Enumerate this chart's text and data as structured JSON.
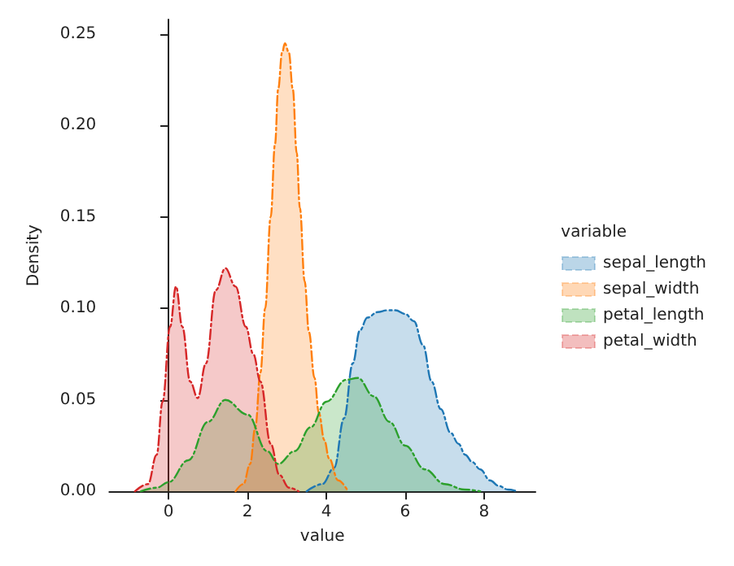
{
  "chart_data": {
    "type": "area",
    "xlabel": "value",
    "ylabel": "Density",
    "legend_title": "variable",
    "legend": "right",
    "line_style": "dashed",
    "marker": "none",
    "xlim": [
      -1.5,
      9.3
    ],
    "ylim": [
      0,
      0.258
    ],
    "xticks": [
      0,
      2,
      4,
      6,
      8
    ],
    "yticks": [
      {
        "value": 0,
        "label": "0.00"
      },
      0.05,
      {
        "value": 0.1,
        "label": "0.10"
      },
      0.15,
      {
        "value": 0.2,
        "label": "0.20"
      },
      0.25
    ],
    "series": [
      {
        "name": "sepal_length",
        "color": "#1f77b4",
        "x": [
          3.5,
          3.9,
          4.2,
          4.45,
          4.67,
          4.85,
          5.04,
          5.3,
          5.55,
          5.75,
          6.0,
          6.22,
          6.45,
          6.67,
          6.9,
          7.15,
          7.35,
          7.52,
          7.7,
          7.9,
          8.15,
          8.37,
          8.6,
          8.85
        ],
        "values": [
          0,
          0.004,
          0.013,
          0.04,
          0.07,
          0.088,
          0.095,
          0.098,
          0.099,
          0.099,
          0.097,
          0.093,
          0.08,
          0.06,
          0.045,
          0.032,
          0.026,
          0.02,
          0.016,
          0.012,
          0.006,
          0.003,
          0.001,
          0
        ]
      },
      {
        "name": "sepal_width",
        "color": "#ff7f0e",
        "x": [
          1.7,
          1.9,
          2.07,
          2.2,
          2.33,
          2.45,
          2.59,
          2.7,
          2.78,
          2.88,
          2.95,
          3.05,
          3.15,
          3.25,
          3.33,
          3.45,
          3.56,
          3.7,
          3.81,
          3.95,
          4.07,
          4.3,
          4.55
        ],
        "values": [
          0,
          0.004,
          0.015,
          0.035,
          0.065,
          0.1,
          0.15,
          0.19,
          0.22,
          0.24,
          0.245,
          0.24,
          0.22,
          0.185,
          0.155,
          0.115,
          0.087,
          0.062,
          0.043,
          0.028,
          0.018,
          0.006,
          0
        ]
      },
      {
        "name": "petal_length",
        "color": "#2ca02c",
        "x": [
          -0.7,
          -0.3,
          0,
          0.5,
          1.0,
          1.44,
          2.0,
          2.5,
          2.78,
          3.2,
          3.6,
          4.0,
          4.5,
          4.8,
          5.2,
          5.6,
          6.0,
          6.5,
          7.0,
          7.5,
          7.9
        ],
        "values": [
          0,
          0.002,
          0.005,
          0.017,
          0.038,
          0.05,
          0.042,
          0.022,
          0.015,
          0.022,
          0.035,
          0.049,
          0.061,
          0.062,
          0.052,
          0.038,
          0.025,
          0.012,
          0.004,
          0.001,
          0
        ]
      },
      {
        "name": "petal_width",
        "color": "#d62728",
        "x": [
          -0.85,
          -0.52,
          -0.3,
          -0.15,
          0.04,
          0.19,
          0.35,
          0.55,
          0.74,
          0.95,
          1.2,
          1.44,
          1.7,
          1.96,
          2.15,
          2.33,
          2.59,
          2.81,
          3.05,
          3.3
        ],
        "values": [
          0,
          0.004,
          0.02,
          0.049,
          0.09,
          0.112,
          0.09,
          0.06,
          0.051,
          0.07,
          0.11,
          0.122,
          0.112,
          0.09,
          0.075,
          0.06,
          0.026,
          0.009,
          0.002,
          0
        ]
      }
    ]
  }
}
